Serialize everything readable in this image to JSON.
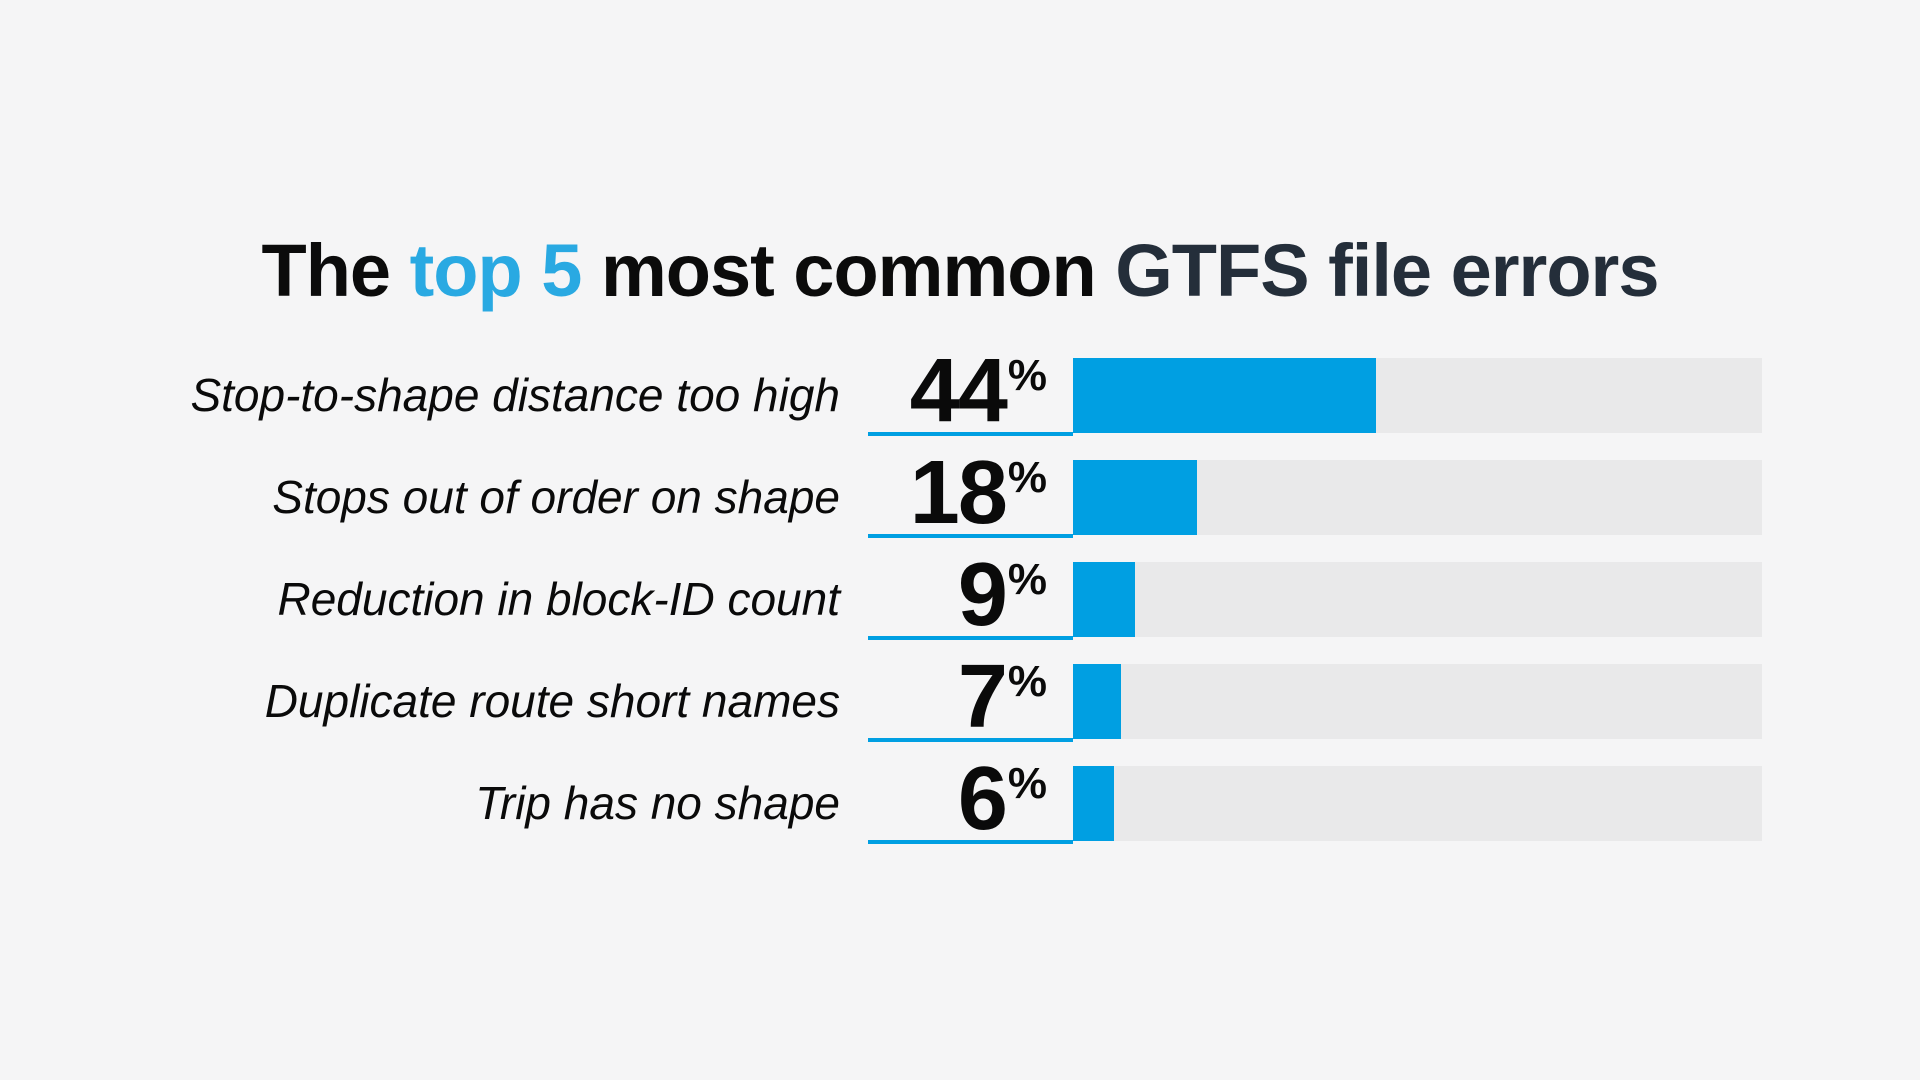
{
  "title": {
    "part_the": "The ",
    "part_top5": "top 5",
    "part_middle": " most common ",
    "part_gtfs": "GTFS file errors",
    "text_color": "#0b0b0b",
    "accent_color": "#29a9e2",
    "dark_color": "#242e3a"
  },
  "chart_data": {
    "type": "bar",
    "orientation": "horizontal",
    "title": "The top 5 most common GTFS file errors",
    "categories": [
      "Stop-to-shape distance too high",
      "Stops out of order on shape",
      "Reduction in block-ID count",
      "Duplicate route short names",
      "Trip has no shape"
    ],
    "values": [
      44,
      18,
      9,
      7,
      6
    ],
    "unit": "%",
    "xlim": [
      0,
      100
    ],
    "xlabel": "",
    "ylabel": "",
    "grid": false,
    "legend": false,
    "bar_color": "#009fe2",
    "track_color": "#e9e9ea",
    "background_color": "#f5f5f6",
    "label_style": "italic",
    "value_label_position": "left-of-bar"
  }
}
